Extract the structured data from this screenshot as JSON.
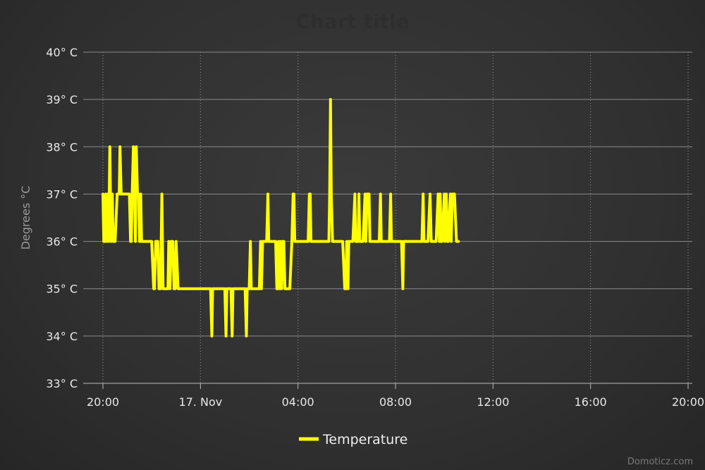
{
  "chart_data": {
    "type": "line",
    "title": "Chart title",
    "xlabel": "",
    "ylabel": "Degrees °C",
    "ylim": [
      33,
      40
    ],
    "xlim": [
      0,
      1445
    ],
    "y_ticks": [
      {
        "value": 33,
        "label": "33° C"
      },
      {
        "value": 34,
        "label": "34° C"
      },
      {
        "value": 35,
        "label": "35° C"
      },
      {
        "value": 36,
        "label": "36° C"
      },
      {
        "value": 37,
        "label": "37° C"
      },
      {
        "value": 38,
        "label": "38° C"
      },
      {
        "value": 39,
        "label": "39° C"
      },
      {
        "value": 40,
        "label": "40° C"
      }
    ],
    "x_ticks": [
      {
        "value": 0,
        "label": "20:00"
      },
      {
        "value": 240,
        "label": "17. Nov"
      },
      {
        "value": 480,
        "label": "04:00"
      },
      {
        "value": 720,
        "label": "08:00"
      },
      {
        "value": 960,
        "label": "12:00"
      },
      {
        "value": 1200,
        "label": "16:00"
      },
      {
        "value": 1440,
        "label": "20:00"
      }
    ],
    "grid": true,
    "legend_position": "bottom-center",
    "series": [
      {
        "name": "Temperature",
        "color": "#ffff00",
        "points": [
          [
            0,
            37
          ],
          [
            2,
            36
          ],
          [
            5,
            36
          ],
          [
            7,
            37
          ],
          [
            9,
            36
          ],
          [
            12,
            37
          ],
          [
            14,
            36
          ],
          [
            17,
            38
          ],
          [
            20,
            36
          ],
          [
            23,
            37
          ],
          [
            25,
            36
          ],
          [
            30,
            36
          ],
          [
            35,
            37
          ],
          [
            40,
            37
          ],
          [
            42,
            38
          ],
          [
            45,
            37
          ],
          [
            55,
            37
          ],
          [
            60,
            37
          ],
          [
            65,
            37
          ],
          [
            68,
            36
          ],
          [
            70,
            36
          ],
          [
            72,
            37
          ],
          [
            75,
            38
          ],
          [
            78,
            37
          ],
          [
            80,
            36
          ],
          [
            82,
            38
          ],
          [
            85,
            37
          ],
          [
            88,
            37
          ],
          [
            90,
            36
          ],
          [
            93,
            37
          ],
          [
            95,
            36
          ],
          [
            100,
            36
          ],
          [
            110,
            36
          ],
          [
            120,
            36
          ],
          [
            125,
            35
          ],
          [
            127,
            35
          ],
          [
            130,
            36
          ],
          [
            135,
            36
          ],
          [
            138,
            35
          ],
          [
            142,
            35
          ],
          [
            145,
            37
          ],
          [
            148,
            35
          ],
          [
            155,
            35
          ],
          [
            160,
            35
          ],
          [
            162,
            36
          ],
          [
            165,
            35
          ],
          [
            168,
            36
          ],
          [
            172,
            36
          ],
          [
            175,
            35
          ],
          [
            178,
            35
          ],
          [
            180,
            36
          ],
          [
            185,
            35
          ],
          [
            192,
            35
          ],
          [
            200,
            35
          ],
          [
            210,
            35
          ],
          [
            220,
            35
          ],
          [
            230,
            35
          ],
          [
            240,
            35
          ],
          [
            250,
            35
          ],
          [
            260,
            35
          ],
          [
            265,
            35
          ],
          [
            268,
            34
          ],
          [
            270,
            35
          ],
          [
            280,
            35
          ],
          [
            290,
            35
          ],
          [
            295,
            35
          ],
          [
            300,
            35
          ],
          [
            303,
            34
          ],
          [
            305,
            35
          ],
          [
            310,
            35
          ],
          [
            315,
            35
          ],
          [
            318,
            34
          ],
          [
            320,
            35
          ],
          [
            325,
            35
          ],
          [
            335,
            35
          ],
          [
            345,
            35
          ],
          [
            350,
            35
          ],
          [
            353,
            34
          ],
          [
            355,
            35
          ],
          [
            360,
            35
          ],
          [
            363,
            36
          ],
          [
            365,
            35
          ],
          [
            370,
            35
          ],
          [
            380,
            35
          ],
          [
            385,
            35
          ],
          [
            388,
            36
          ],
          [
            390,
            35
          ],
          [
            393,
            36
          ],
          [
            395,
            36
          ],
          [
            400,
            36
          ],
          [
            403,
            36
          ],
          [
            406,
            37
          ],
          [
            408,
            36
          ],
          [
            415,
            36
          ],
          [
            420,
            36
          ],
          [
            425,
            36
          ],
          [
            428,
            35
          ],
          [
            430,
            35
          ],
          [
            432,
            36
          ],
          [
            435,
            35
          ],
          [
            437,
            36
          ],
          [
            440,
            35
          ],
          [
            442,
            36
          ],
          [
            445,
            36
          ],
          [
            448,
            35
          ],
          [
            450,
            35
          ],
          [
            455,
            35
          ],
          [
            460,
            35
          ],
          [
            465,
            36
          ],
          [
            468,
            37
          ],
          [
            470,
            37
          ],
          [
            472,
            36
          ],
          [
            480,
            36
          ],
          [
            490,
            36
          ],
          [
            500,
            36
          ],
          [
            505,
            36
          ],
          [
            508,
            37
          ],
          [
            510,
            37
          ],
          [
            512,
            36
          ],
          [
            520,
            36
          ],
          [
            530,
            36
          ],
          [
            550,
            36
          ],
          [
            556,
            36
          ],
          [
            558,
            37
          ],
          [
            560,
            39
          ],
          [
            562,
            37
          ],
          [
            565,
            36
          ],
          [
            570,
            36
          ],
          [
            580,
            36
          ],
          [
            590,
            36
          ],
          [
            595,
            35
          ],
          [
            598,
            35
          ],
          [
            600,
            36
          ],
          [
            603,
            35
          ],
          [
            605,
            36
          ],
          [
            610,
            36
          ],
          [
            615,
            36
          ],
          [
            620,
            37
          ],
          [
            622,
            36
          ],
          [
            625,
            36
          ],
          [
            628,
            36
          ],
          [
            630,
            37
          ],
          [
            632,
            36
          ],
          [
            635,
            36
          ],
          [
            640,
            36
          ],
          [
            645,
            37
          ],
          [
            647,
            36
          ],
          [
            650,
            37
          ],
          [
            655,
            37
          ],
          [
            657,
            36
          ],
          [
            665,
            36
          ],
          [
            670,
            36
          ],
          [
            680,
            36
          ],
          [
            683,
            37
          ],
          [
            685,
            36
          ],
          [
            690,
            36
          ],
          [
            700,
            36
          ],
          [
            705,
            36
          ],
          [
            708,
            37
          ],
          [
            710,
            36
          ],
          [
            720,
            36
          ],
          [
            730,
            36
          ],
          [
            735,
            36
          ],
          [
            738,
            35
          ],
          [
            740,
            36
          ],
          [
            750,
            36
          ],
          [
            760,
            36
          ],
          [
            770,
            36
          ],
          [
            780,
            36
          ],
          [
            785,
            36
          ],
          [
            788,
            37
          ],
          [
            790,
            36
          ],
          [
            795,
            36
          ],
          [
            800,
            36
          ],
          [
            805,
            37
          ],
          [
            808,
            36
          ],
          [
            810,
            36
          ],
          [
            815,
            36
          ],
          [
            820,
            36
          ],
          [
            825,
            37
          ],
          [
            828,
            36
          ],
          [
            830,
            37
          ],
          [
            832,
            36
          ],
          [
            835,
            36
          ],
          [
            840,
            37
          ],
          [
            842,
            36
          ],
          [
            845,
            37
          ],
          [
            848,
            36
          ],
          [
            850,
            36
          ],
          [
            855,
            37
          ],
          [
            857,
            36
          ],
          [
            860,
            37
          ],
          [
            865,
            37
          ],
          [
            870,
            36
          ],
          [
            875,
            36
          ]
        ]
      }
    ]
  },
  "credits": "Domoticz.com"
}
